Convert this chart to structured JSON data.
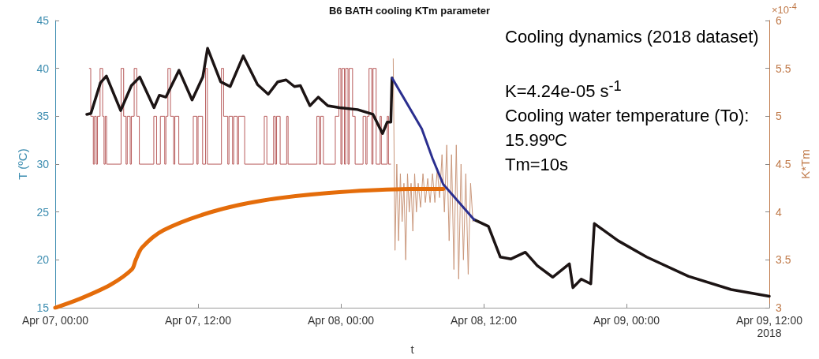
{
  "chart_data": {
    "type": "line",
    "title": "B6 BATH cooling KTm parameter",
    "xlabel": "t",
    "ylabel": "T (ºC)",
    "y2label": "K*Tm",
    "annotations": [
      "×10$^{-4}$",
      "Cooling dynamics (2018 dataset)",
      "K=4.24e-05 s$^{-1}$",
      "Cooling water temperature (To): 15.99ºC",
      "Tm=10s"
    ],
    "xlim": [
      "2018-04-07T00:00",
      "2018-04-09T12:00"
    ],
    "xticks": [
      {
        "value": "2018-04-07T00:00",
        "label": "Apr 07, 00:00"
      },
      {
        "value": "2018-04-07T12:00",
        "label": "Apr 07, 12:00"
      },
      {
        "value": "2018-04-08T00:00",
        "label": "Apr 08, 00:00"
      },
      {
        "value": "2018-04-08T12:00",
        "label": "Apr 08, 12:00"
      },
      {
        "value": "2018-04-09T00:00",
        "label": "Apr 09, 00:00"
      },
      {
        "value": "2018-04-09T12:00",
        "label": "Apr 09, 12:00\n2018"
      }
    ],
    "ylim": [
      15,
      45
    ],
    "yticks": [
      15,
      20,
      25,
      30,
      35,
      40,
      45
    ],
    "y2lim": [
      3,
      6
    ],
    "y2ticks": [
      3,
      3.5,
      4,
      4.5,
      5,
      5.5,
      6
    ],
    "series": [
      {
        "type": "step",
        "color": "#b85c5c",
        "x": [
          "2018-04-07T02:52",
          "2018-04-07T02:59",
          "2018-04-07T03:12",
          "2018-04-07T03:18",
          "2018-04-07T03:27",
          "2018-04-07T03:33",
          "2018-04-07T03:46",
          "2018-04-07T03:59",
          "2018-04-07T04:06",
          "2018-04-07T04:12",
          "2018-04-07T04:19",
          "2018-04-07T05:32",
          "2018-04-07T05:45",
          "2018-04-07T05:57",
          "2018-04-07T06:03",
          "2018-04-07T06:18",
          "2018-04-07T06:24",
          "2018-04-07T06:38",
          "2018-04-07T06:51",
          "2018-04-07T07:04",
          "2018-04-07T08:17",
          "2018-04-07T08:31",
          "2018-04-07T08:50",
          "2018-04-07T09:12",
          "2018-04-07T09:18",
          "2018-04-07T09:28",
          "2018-04-07T09:41",
          "2018-04-07T09:57",
          "2018-04-07T10:03",
          "2018-04-07T10:23",
          "2018-04-07T11:36",
          "2018-04-07T11:54",
          "2018-04-07T12:00",
          "2018-04-07T12:23",
          "2018-04-07T12:38",
          "2018-04-07T12:47",
          "2018-04-07T13:58",
          "2018-04-07T14:09",
          "2018-04-07T14:30",
          "2018-04-07T14:36",
          "2018-04-07T14:54",
          "2018-04-07T15:00",
          "2018-04-07T15:18",
          "2018-04-07T15:24",
          "2018-04-07T15:55",
          "2018-04-07T17:34",
          "2018-04-07T17:47",
          "2018-04-07T18:21",
          "2018-04-07T18:30",
          "2018-04-07T18:36",
          "2018-04-07T18:54",
          "2018-04-07T19:27",
          "2018-04-07T19:34",
          "2018-04-07T21:59",
          "2018-04-07T22:12",
          "2018-04-07T22:18",
          "2018-04-07T22:32",
          "2018-04-07T23:32",
          "2018-04-07T23:50",
          "2018-04-08T00:00",
          "2018-04-08T00:06",
          "2018-04-08T00:18",
          "2018-04-08T00:24",
          "2018-04-08T00:36",
          "2018-04-08T00:42",
          "2018-04-08T00:59",
          "2018-04-08T01:12",
          "2018-04-08T01:52",
          "2018-04-08T02:06",
          "2018-04-08T02:12",
          "2018-04-08T02:22",
          "2018-04-08T02:36",
          "2018-04-08T02:42",
          "2018-04-08T02:58",
          "2018-04-08T03:18",
          "2018-04-08T03:24",
          "2018-04-08T03:54",
          "2018-04-08T04:00",
          "2018-04-08T04:11"
        ],
        "values": [
          40,
          35,
          30,
          35,
          30,
          35,
          40,
          35,
          30,
          35,
          30,
          40,
          35,
          30,
          35,
          30,
          35,
          40,
          35,
          30,
          35,
          30,
          35,
          30,
          35,
          40,
          35,
          30,
          35,
          30,
          35,
          30,
          35,
          30,
          40,
          30,
          40,
          35,
          30,
          35,
          30,
          35,
          30,
          35,
          30,
          35,
          30,
          35,
          30,
          35,
          30,
          35,
          30,
          35,
          30,
          35,
          30,
          35,
          40,
          30,
          40,
          30,
          40,
          30,
          40,
          35,
          30,
          35,
          30,
          35,
          40,
          30,
          40,
          30,
          35,
          30,
          35,
          30,
          30
        ]
      },
      {
        "axis": "y2",
        "color": "#c9967a",
        "x": [
          "2018-04-08T04:24",
          "2018-04-08T04:33",
          "2018-04-08T04:42",
          "2018-04-08T04:51",
          "2018-04-08T05:00",
          "2018-04-08T05:09",
          "2018-04-08T05:18",
          "2018-04-08T05:27",
          "2018-04-08T05:36",
          "2018-04-08T05:45",
          "2018-04-08T05:54",
          "2018-04-08T06:03",
          "2018-04-08T06:12",
          "2018-04-08T06:21",
          "2018-04-08T06:30",
          "2018-04-08T06:42",
          "2018-04-08T06:54",
          "2018-04-08T07:06",
          "2018-04-08T07:18",
          "2018-04-08T07:30",
          "2018-04-08T07:42",
          "2018-04-08T07:54",
          "2018-04-08T08:06",
          "2018-04-08T08:18",
          "2018-04-08T08:30",
          "2018-04-08T08:42",
          "2018-04-08T08:54",
          "2018-04-08T09:06",
          "2018-04-08T09:18",
          "2018-04-08T09:30",
          "2018-04-08T09:42",
          "2018-04-08T09:54",
          "2018-04-08T10:06",
          "2018-04-08T10:18",
          "2018-04-08T10:30",
          "2018-04-08T10:42",
          "2018-04-08T10:54",
          "2018-04-08T11:06"
        ],
        "values": [
          5.6,
          3.6,
          4.5,
          3.7,
          4.4,
          3.9,
          4.3,
          3.5,
          4.4,
          4.0,
          4.3,
          3.8,
          4.4,
          4.0,
          4.3,
          4.05,
          4.4,
          4.1,
          4.35,
          4.1,
          4.4,
          4.1,
          4.45,
          4.15,
          4.6,
          4.0,
          4.7,
          3.7,
          4.6,
          3.4,
          4.7,
          3.3,
          4.5,
          3.5,
          4.4,
          3.35,
          4.3,
          3.9
        ]
      },
      {
        "color": "#1c1414",
        "x": [
          "2018-04-07T02:39",
          "2018-04-07T03:00",
          "2018-04-07T03:48",
          "2018-04-07T04:18",
          "2018-04-07T05:30",
          "2018-04-07T06:24",
          "2018-04-07T07:06",
          "2018-04-07T08:18",
          "2018-04-07T08:45",
          "2018-04-07T09:18",
          "2018-04-07T10:24",
          "2018-04-07T11:30",
          "2018-04-07T12:24",
          "2018-04-07T12:48",
          "2018-04-07T13:54",
          "2018-04-07T14:42",
          "2018-04-07T15:48",
          "2018-04-07T17:00",
          "2018-04-07T17:54",
          "2018-04-07T18:42",
          "2018-04-07T19:24",
          "2018-04-07T20:06",
          "2018-04-07T20:36",
          "2018-04-07T21:24",
          "2018-04-07T22:06",
          "2018-04-07T22:54",
          "2018-04-07T23:54",
          "2018-04-08T01:24",
          "2018-04-08T02:42",
          "2018-04-08T03:30",
          "2018-04-08T03:54",
          "2018-04-08T04:12",
          "2018-04-08T04:18",
          "2018-04-08T07:42",
          "2018-04-08T11:12",
          "2018-04-08T12:24",
          "2018-04-08T13:24",
          "2018-04-08T14:18",
          "2018-04-08T15:30",
          "2018-04-08T16:30",
          "2018-04-08T17:48",
          "2018-04-08T19:12",
          "2018-04-08T19:30",
          "2018-04-08T20:12",
          "2018-04-08T21:00",
          "2018-04-08T21:18",
          "2018-04-08T23:18",
          "2018-04-09T01:42",
          "2018-04-09T05:12",
          "2018-04-09T08:48",
          "2018-04-09T12:00"
        ],
        "values": [
          35.2,
          35.3,
          38.5,
          39.2,
          35.6,
          38.2,
          39.1,
          35.9,
          37.2,
          37.0,
          39.8,
          36.7,
          39.1,
          42.1,
          38.6,
          38.1,
          41.3,
          38.3,
          37.3,
          38.6,
          38.8,
          38.1,
          38.2,
          36.1,
          37.0,
          36.1,
          35.9,
          35.7,
          35.2,
          33.2,
          34.4,
          34.4,
          39.0,
          null,
          24.2,
          23.5,
          20.3,
          20.1,
          20.8,
          19.4,
          18.2,
          19.6,
          17.1,
          18.0,
          17.5,
          23.8,
          22.0,
          20.3,
          18.3,
          16.9,
          16.2
        ]
      },
      {
        "color": "#2b2f8f",
        "x": [
          "2018-04-08T04:18",
          "2018-04-08T06:48",
          "2018-04-08T07:42",
          "2018-04-08T08:36",
          "2018-04-08T11:12"
        ],
        "values": [
          39.0,
          33.7,
          30.6,
          27.9,
          24.2
        ]
      },
      {
        "color": "#e46c0a",
        "x": [
          "2018-04-07T00:00",
          "2018-04-07T02:00",
          "2018-04-07T04:38",
          "2018-04-07T06:26",
          "2018-04-07T06:46",
          "2018-04-07T07:18",
          "2018-04-07T09:06",
          "2018-04-07T13:06",
          "2018-04-07T17:24",
          "2018-04-07T23:00",
          "2018-04-08T05:48",
          "2018-04-08T08:36"
        ],
        "values": [
          15,
          15.9,
          17.4,
          19.0,
          20.0,
          21.3,
          23.1,
          25.0,
          26.2,
          27.0,
          27.4,
          27.4
        ]
      }
    ]
  }
}
